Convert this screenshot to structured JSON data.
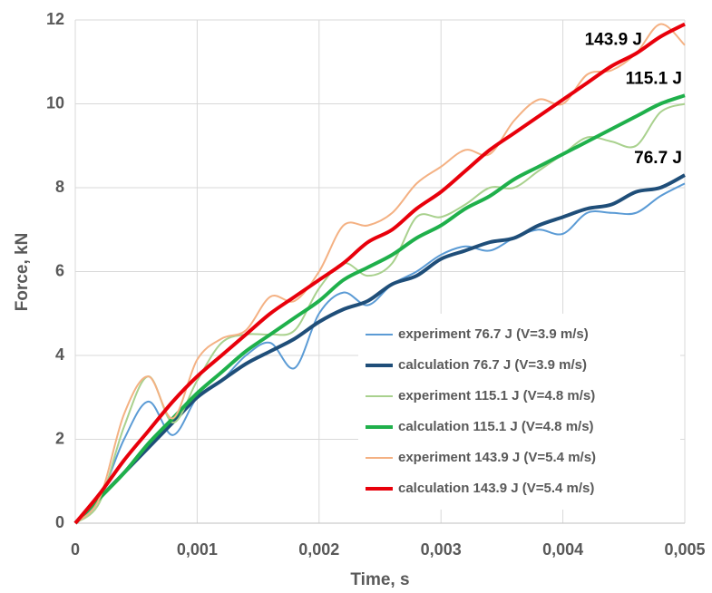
{
  "chart_data": {
    "type": "line",
    "x_label": "Time, s",
    "y_label": "Force, kN",
    "x": [
      0,
      0.0002,
      0.0004,
      0.0006,
      0.0008,
      0.001,
      0.0012,
      0.0014,
      0.0016,
      0.0018,
      0.002,
      0.0022,
      0.0024,
      0.0026,
      0.0028,
      0.003,
      0.0032,
      0.0034,
      0.0036,
      0.0038,
      0.004,
      0.0042,
      0.0044,
      0.0046,
      0.0048,
      0.005
    ],
    "series": [
      {
        "name": "experiment 76.7 J (V=3.9 m/s)",
        "color": "#5b9bd5",
        "width": 2,
        "values": [
          0,
          0.6,
          2.0,
          2.9,
          2.1,
          3.0,
          3.4,
          4.0,
          4.3,
          3.7,
          5.0,
          5.5,
          5.2,
          5.7,
          6.0,
          6.4,
          6.6,
          6.5,
          6.8,
          7.0,
          6.9,
          7.4,
          7.4,
          7.4,
          7.8,
          8.1
        ]
      },
      {
        "name": "calculation 76.7 J (V=3.9 m/s)",
        "color": "#1f4e79",
        "width": 4,
        "label": "76.7 J",
        "values": [
          0,
          0.6,
          1.2,
          1.8,
          2.4,
          3.0,
          3.4,
          3.8,
          4.1,
          4.4,
          4.8,
          5.1,
          5.3,
          5.7,
          5.9,
          6.3,
          6.5,
          6.7,
          6.8,
          7.1,
          7.3,
          7.5,
          7.6,
          7.9,
          8.0,
          8.3
        ]
      },
      {
        "name": "experiment 115.1 J (V=4.8 m/s)",
        "color": "#a9d18e",
        "width": 2,
        "values": [
          0,
          0.5,
          2.3,
          3.5,
          2.4,
          3.4,
          4.3,
          4.5,
          4.5,
          4.6,
          5.6,
          6.2,
          5.9,
          6.2,
          7.3,
          7.3,
          7.6,
          8.0,
          8.0,
          8.4,
          8.8,
          9.2,
          9.1,
          9.0,
          9.8,
          10.0
        ]
      },
      {
        "name": "calculation 115.1 J (V=4.8 m/s)",
        "color": "#1fb04b",
        "width": 4,
        "label": "115.1 J",
        "values": [
          0,
          0.6,
          1.2,
          1.9,
          2.5,
          3.1,
          3.6,
          4.1,
          4.5,
          4.9,
          5.3,
          5.8,
          6.1,
          6.4,
          6.8,
          7.1,
          7.5,
          7.8,
          8.2,
          8.5,
          8.8,
          9.1,
          9.4,
          9.7,
          10.0,
          10.2
        ]
      },
      {
        "name": "experiment 143.9 J (V=5.4 m/s)",
        "color": "#f4b183",
        "width": 2,
        "values": [
          0,
          0.6,
          2.6,
          3.5,
          2.5,
          3.9,
          4.4,
          4.6,
          5.4,
          5.3,
          6.0,
          7.1,
          7.1,
          7.4,
          8.1,
          8.5,
          8.9,
          8.8,
          9.6,
          10.1,
          10.0,
          10.7,
          10.8,
          11.2,
          11.9,
          11.4
        ]
      },
      {
        "name": "calculation 143.9 J (V=5.4 m/s)",
        "color": "#e8000b",
        "width": 4,
        "label": "143.9 J",
        "values": [
          0,
          0.7,
          1.5,
          2.2,
          2.9,
          3.5,
          4.0,
          4.5,
          5.0,
          5.4,
          5.8,
          6.2,
          6.7,
          7.0,
          7.5,
          7.9,
          8.4,
          8.9,
          9.3,
          9.7,
          10.1,
          10.5,
          10.9,
          11.2,
          11.6,
          11.9
        ]
      }
    ],
    "xlim": [
      0,
      0.005
    ],
    "xticks": [
      0,
      {
        "value": 0.001,
        "label": "0,001"
      },
      {
        "value": 0.002,
        "label": "0,002"
      },
      {
        "value": 0.003,
        "label": "0,003"
      },
      {
        "value": 0.004,
        "label": "0,004"
      },
      {
        "value": 0.005,
        "label": "0,005"
      }
    ],
    "ylim": [
      0,
      12
    ],
    "yticks": [
      0,
      2,
      4,
      6,
      8,
      10,
      12
    ],
    "grid": true,
    "legend": "lower right"
  }
}
